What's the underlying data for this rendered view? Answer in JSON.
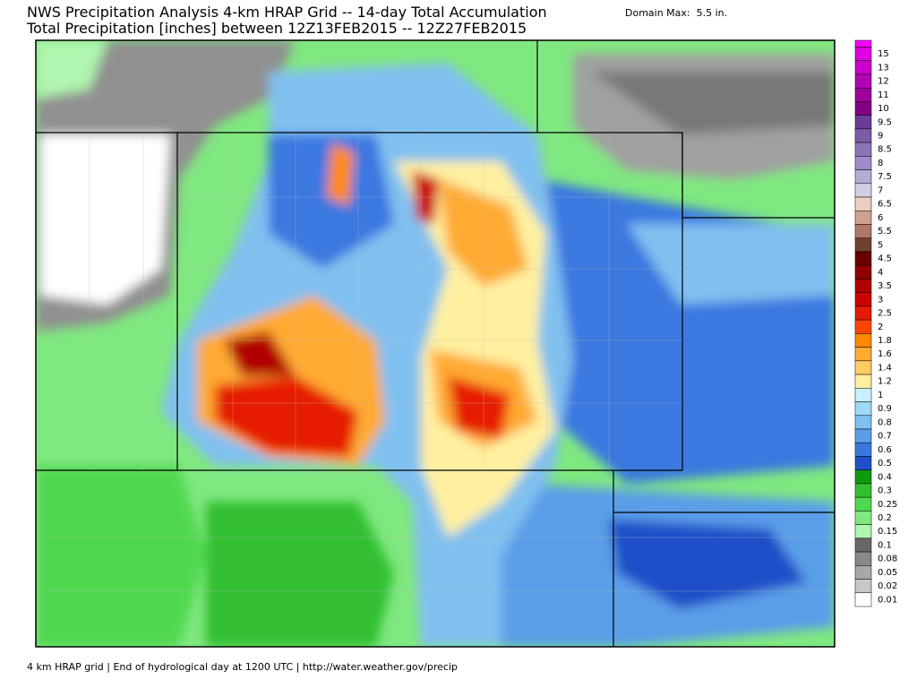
{
  "header": {
    "title": "NWS Precipitation Analysis 4-km HRAP Grid -- 14-day Total Accumulation",
    "subtitle": "Total Precipitation [inches] between 12Z13FEB2015 -- 12Z27FEB2015",
    "domain_max": "Domain Max:  5.5 in."
  },
  "legend": {
    "items": [
      {
        "label": "15",
        "color": "#e000e0"
      },
      {
        "label": "13",
        "color": "#cc00cc"
      },
      {
        "label": "12",
        "color": "#b600b6"
      },
      {
        "label": "11",
        "color": "#9e009e"
      },
      {
        "label": "10",
        "color": "#840084"
      },
      {
        "label": "9.5",
        "color": "#6a3e98"
      },
      {
        "label": "9",
        "color": "#7a5ca8"
      },
      {
        "label": "8.5",
        "color": "#8c74b8"
      },
      {
        "label": "8",
        "color": "#a08cc8"
      },
      {
        "label": "7.5",
        "color": "#b8aad8"
      },
      {
        "label": "7",
        "color": "#d6cce8"
      },
      {
        "label": "6.5",
        "color": "#eccfc0"
      },
      {
        "label": "6",
        "color": "#d0a090"
      },
      {
        "label": "5.5",
        "color": "#b07868"
      },
      {
        "label": "5",
        "color": "#704030"
      },
      {
        "label": "4.5",
        "color": "#6a0000"
      },
      {
        "label": "4",
        "color": "#900000"
      },
      {
        "label": "3.5",
        "color": "#b00000"
      },
      {
        "label": "3",
        "color": "#cc0000"
      },
      {
        "label": "2.5",
        "color": "#e61a00"
      },
      {
        "label": "2",
        "color": "#ff4400"
      },
      {
        "label": "1.8",
        "color": "#ff8a00"
      },
      {
        "label": "1.6",
        "color": "#ffaa33"
      },
      {
        "label": "1.4",
        "color": "#ffcc66"
      },
      {
        "label": "1.2",
        "color": "#fff0a0"
      },
      {
        "label": "1",
        "color": "#c8f0ff"
      },
      {
        "label": "0.9",
        "color": "#a0d8f8"
      },
      {
        "label": "0.8",
        "color": "#80c0f0"
      },
      {
        "label": "0.7",
        "color": "#5a9ee8"
      },
      {
        "label": "0.6",
        "color": "#3a78e0"
      },
      {
        "label": "0.5",
        "color": "#1e50c8"
      },
      {
        "label": "0.4",
        "color": "#109a10"
      },
      {
        "label": "0.3",
        "color": "#30c030"
      },
      {
        "label": "0.25",
        "color": "#50d850"
      },
      {
        "label": "0.2",
        "color": "#80e880"
      },
      {
        "label": "0.15",
        "color": "#b0f5b0"
      },
      {
        "label": "0.1",
        "color": "#686868"
      },
      {
        "label": "0.08",
        "color": "#888888"
      },
      {
        "label": "0.05",
        "color": "#a8a8a8"
      },
      {
        "label": "0.02",
        "color": "#c8c8c8"
      },
      {
        "label": "0.01",
        "color": "#ffffff"
      }
    ]
  },
  "footer": "4 km HRAP grid | End of hydrological day at 1200 UTC | http://water.weather.gov/precip"
}
